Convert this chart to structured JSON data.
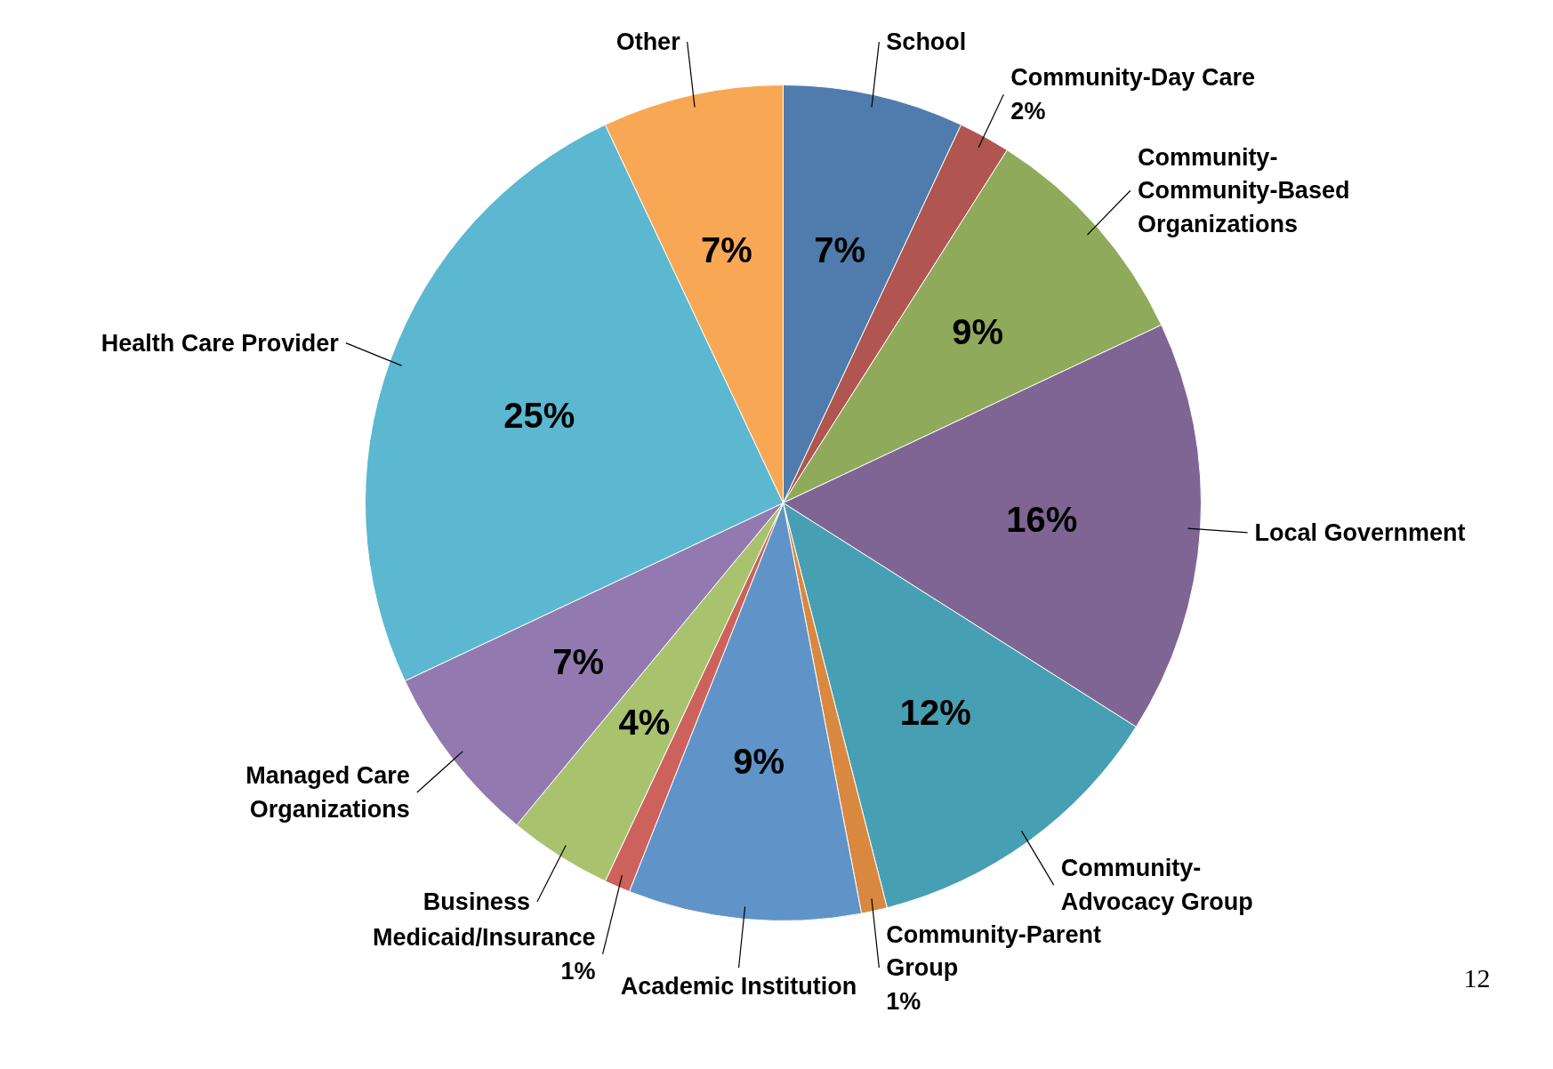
{
  "chart_data": {
    "type": "pie",
    "categories": [
      "School",
      "Community-Day Care",
      "Community-\nCommunity-Based\nOrganizations",
      "Local Government",
      "Community-\nAdvocacy Group",
      "Community-Parent\nGroup",
      "Academic Institution",
      "Medicaid/Insurance",
      "Business",
      "Managed Care\nOrganizations",
      "Health Care Provider",
      "Other"
    ],
    "values": [
      7,
      2,
      9,
      16,
      12,
      1,
      9,
      1,
      4,
      7,
      25,
      7
    ],
    "value_labels": [
      "7%",
      "2%",
      "9%",
      "16%",
      "12%",
      "1%",
      "9%",
      "1%",
      "4%",
      "7%",
      "25%",
      "7%"
    ],
    "colors": [
      "#4f7cac",
      "#b0554f",
      "#8faa5a",
      "#7e6593",
      "#479fb3",
      "#d8883f",
      "#6094c8",
      "#cd625d",
      "#a9c26e",
      "#927ab0",
      "#5bb8d0",
      "#f8a855"
    ],
    "annotations": [
      "12"
    ]
  }
}
